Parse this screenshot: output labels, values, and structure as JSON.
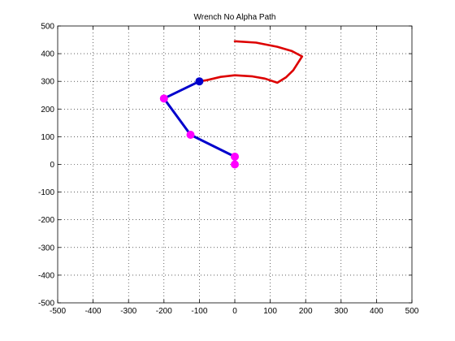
{
  "chart_data": {
    "type": "line",
    "title": "Wrench No Alpha Path",
    "xlabel": "",
    "ylabel": "",
    "xlim": [
      -500,
      500
    ],
    "ylim": [
      -500,
      500
    ],
    "xticks": [
      -500,
      -400,
      -300,
      -200,
      -100,
      0,
      100,
      200,
      300,
      400,
      500
    ],
    "yticks": [
      500,
      400,
      300,
      200,
      100,
      0,
      -100,
      -200,
      -300,
      -400,
      -500
    ],
    "grid": true,
    "series": [
      {
        "color": "#dd0000",
        "style": "path",
        "points": [
          [
            0,
            445
          ],
          [
            60,
            440
          ],
          [
            120,
            425
          ],
          [
            160,
            410
          ],
          [
            190,
            390
          ],
          [
            165,
            340
          ],
          [
            145,
            315
          ],
          [
            120,
            295
          ],
          [
            85,
            310
          ],
          [
            50,
            318
          ],
          [
            0,
            322
          ],
          [
            -40,
            316
          ],
          [
            -80,
            304
          ],
          [
            -100,
            300
          ]
        ]
      },
      {
        "color": "#0000cc",
        "style": "arm",
        "points": [
          [
            -100,
            300
          ],
          [
            -200,
            238
          ],
          [
            -125,
            107
          ],
          [
            0,
            28
          ],
          [
            0,
            0
          ]
        ]
      }
    ],
    "joints": [
      {
        "x": -100,
        "y": 300,
        "color": "#0000cc"
      },
      {
        "x": -200,
        "y": 238,
        "color": "#ff00ff"
      },
      {
        "x": -125,
        "y": 107,
        "color": "#ff00ff"
      },
      {
        "x": 0,
        "y": 28,
        "color": "#ff00ff"
      },
      {
        "x": 0,
        "y": 0,
        "color": "#ff00ff"
      }
    ]
  }
}
